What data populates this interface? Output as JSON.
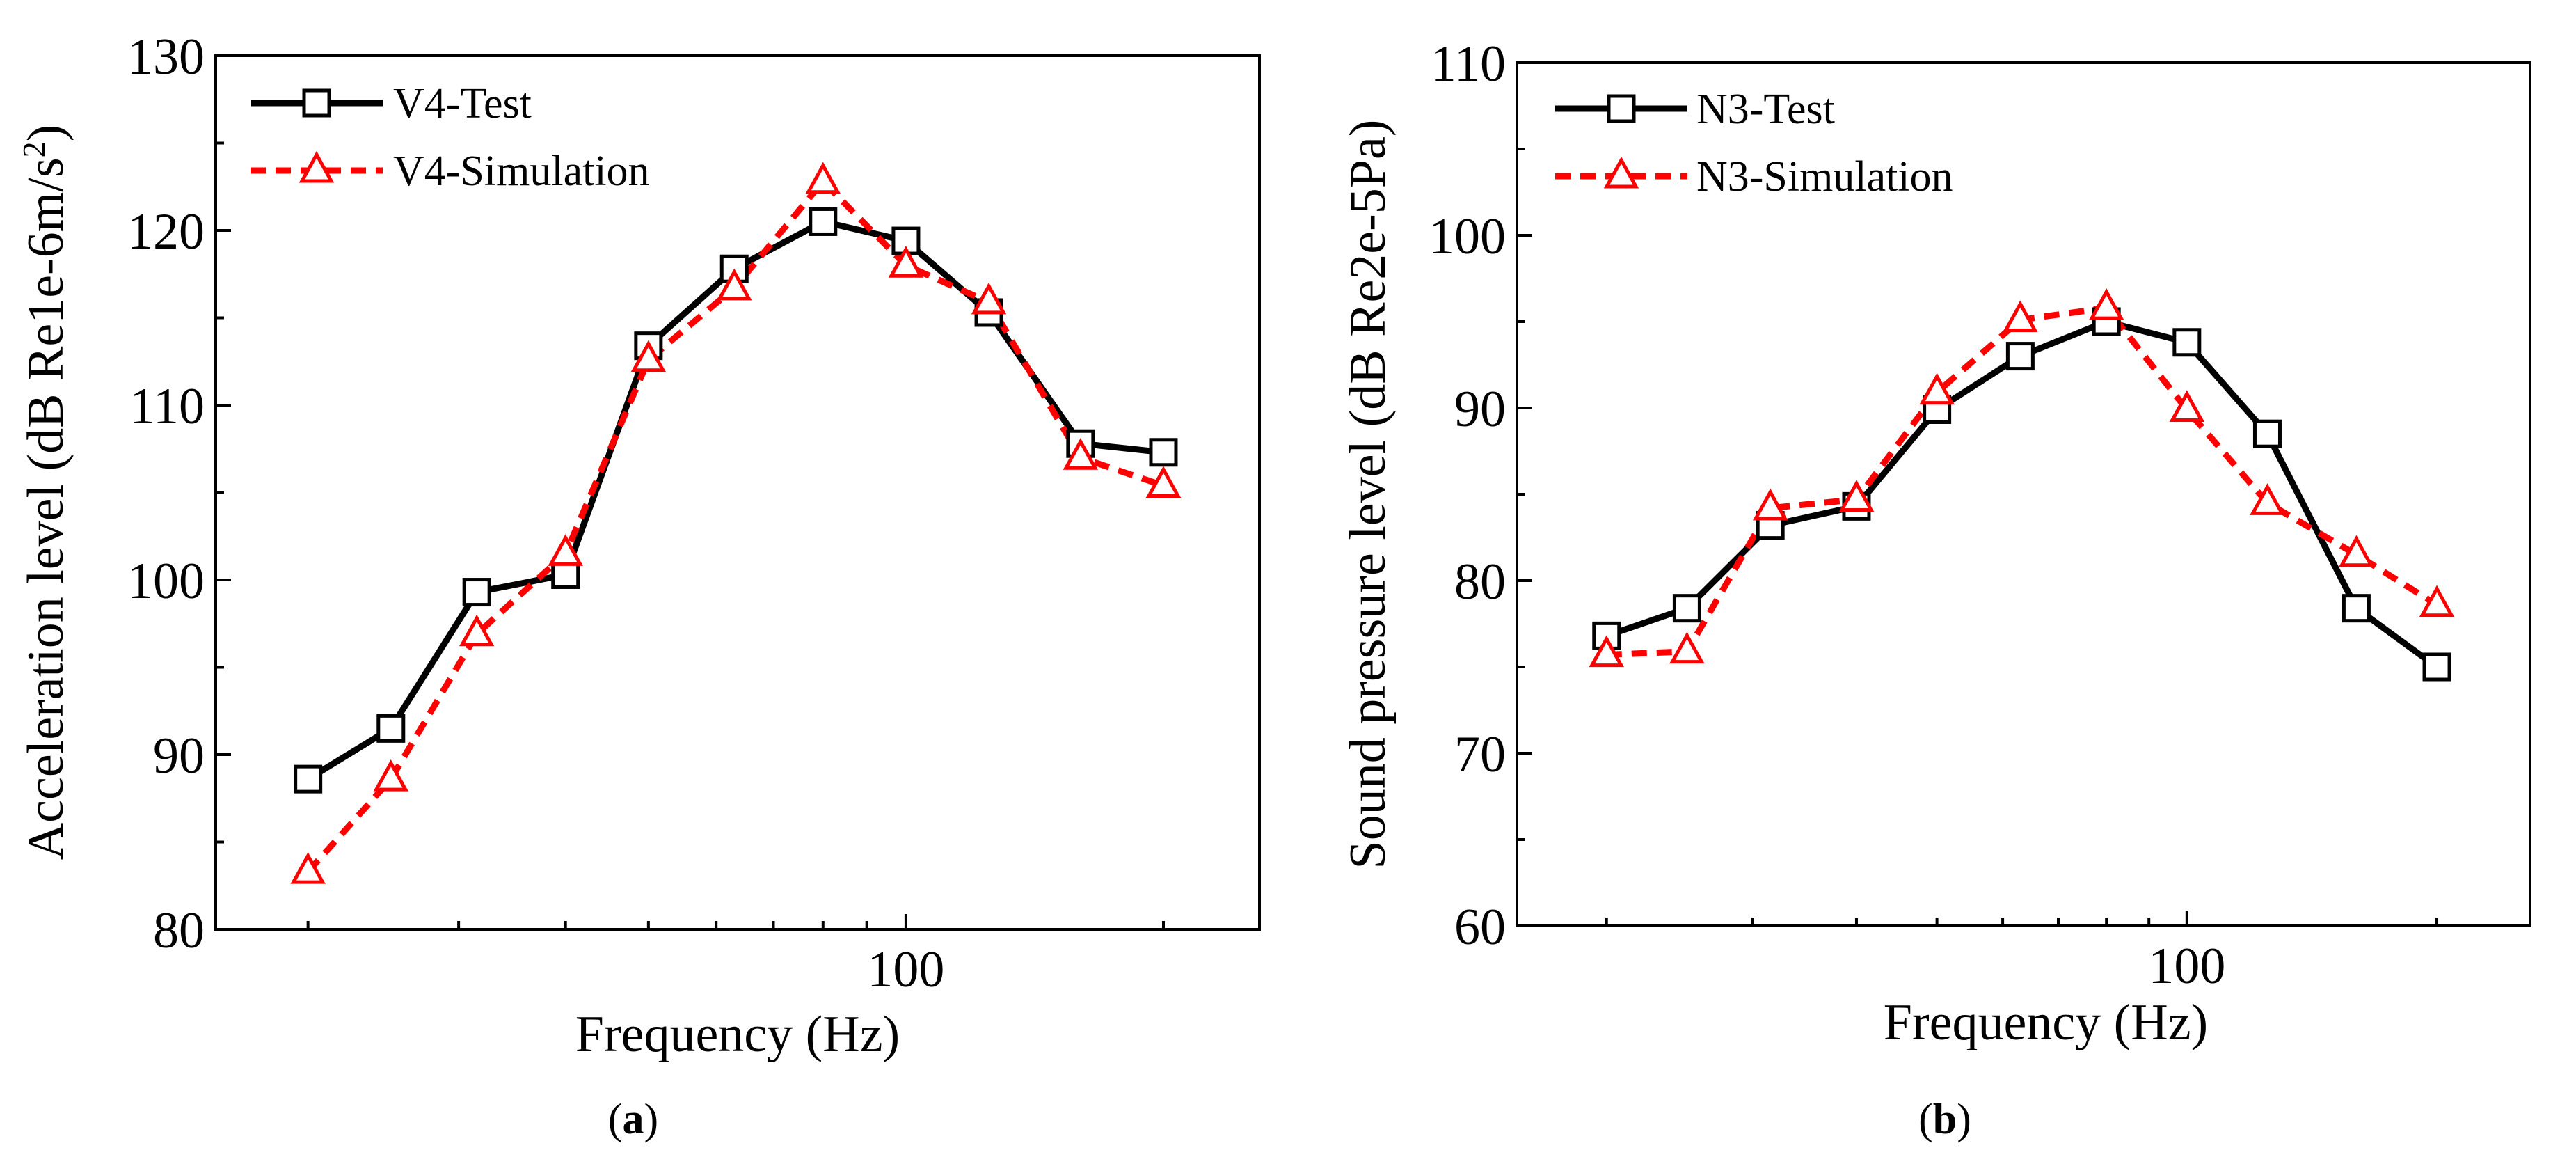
{
  "chart_data": [
    {
      "type": "line",
      "panel_label": "a",
      "x_scale": "log",
      "xlabel": "Frequency (Hz)",
      "ylabel": "Acceleration level (dB Re1e-6m/s",
      "ylabel_sup": "2",
      "ylabel_end": ")",
      "ylim": [
        80,
        130
      ],
      "yticks": [
        80,
        90,
        100,
        110,
        120,
        130
      ],
      "xlim": [
        15.6,
        259
      ],
      "xtick_labels": [
        {
          "value": 100,
          "label": "100"
        }
      ],
      "x": [
        20,
        25,
        31.5,
        40,
        50,
        63,
        80,
        100,
        125,
        160,
        200
      ],
      "series": [
        {
          "name": "V4-Test",
          "color": "#000000",
          "style": "solid",
          "marker": "square",
          "values": [
            88.6,
            91.5,
            99.3,
            100.3,
            113.4,
            117.8,
            120.5,
            119.4,
            115.3,
            107.8,
            107.3
          ]
        },
        {
          "name": "V4-Simulation",
          "color": "#ff0000",
          "style": "dashed",
          "marker": "triangle",
          "values": [
            83.3,
            88.6,
            96.9,
            101.5,
            112.6,
            116.7,
            122.8,
            118.0,
            115.9,
            107.0,
            105.4
          ]
        }
      ],
      "legend_location": "top-left"
    },
    {
      "type": "line",
      "panel_label": "b",
      "x_scale": "log",
      "xlabel": "Frequency (Hz)",
      "ylabel": "Sound pressure level (dB Re2e-5Pa)",
      "ylim": [
        60,
        110
      ],
      "yticks": [
        60,
        70,
        80,
        90,
        100,
        110
      ],
      "xlim": [
        15.6,
        259
      ],
      "xtick_labels": [
        {
          "value": 100,
          "label": "100"
        }
      ],
      "x": [
        20,
        25,
        31.5,
        40,
        50,
        63,
        80,
        100,
        125,
        160,
        200
      ],
      "series": [
        {
          "name": "N3-Test",
          "color": "#000000",
          "style": "solid",
          "marker": "square",
          "values": [
            76.8,
            78.4,
            83.2,
            84.3,
            89.9,
            93.0,
            95.0,
            93.8,
            88.5,
            78.4,
            75.0
          ]
        },
        {
          "name": "N3-Simulation",
          "color": "#ff0000",
          "style": "dashed",
          "marker": "triangle",
          "values": [
            75.7,
            75.9,
            84.2,
            84.7,
            90.9,
            95.1,
            95.8,
            89.9,
            84.5,
            81.5,
            78.6
          ]
        }
      ],
      "legend_location": "top-left"
    }
  ]
}
